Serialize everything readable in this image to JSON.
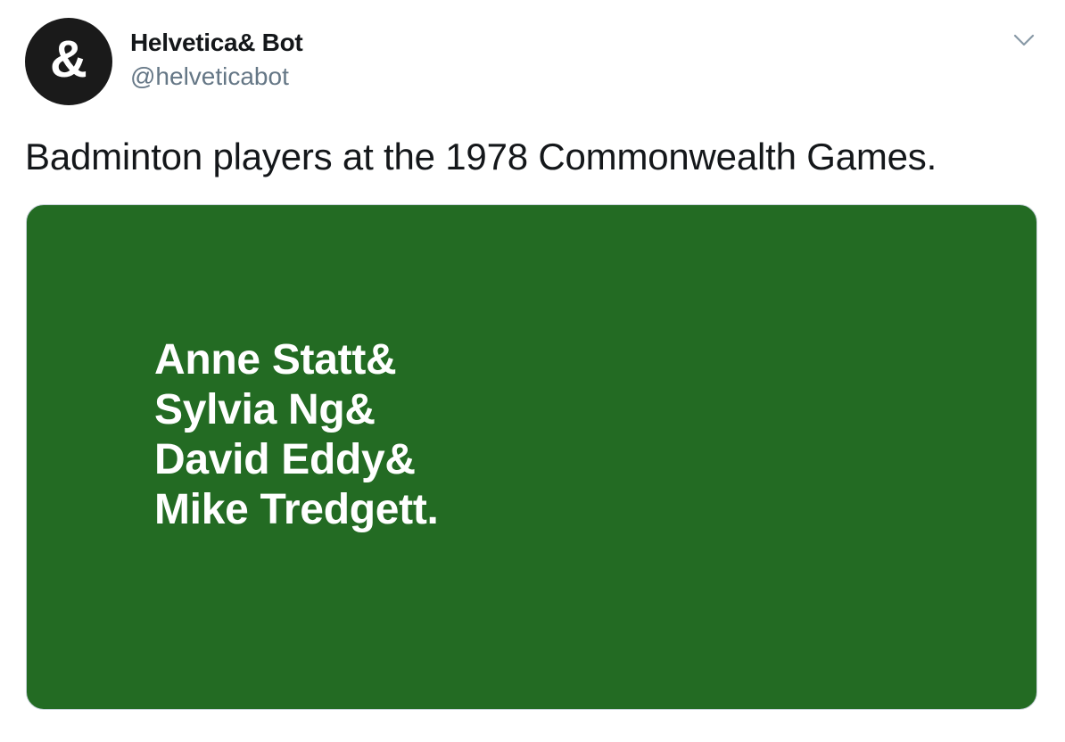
{
  "author": {
    "avatar_glyph": "&",
    "display_name": "Helvetica& Bot",
    "handle": "@helveticabot"
  },
  "menu": {
    "icon": "chevron-down-icon"
  },
  "tweet": {
    "text": "Badminton players at the 1978 Commonwealth Games."
  },
  "media": {
    "background_color": "#236b23",
    "lines": [
      "Anne Statt&",
      "Sylvia Ng&",
      "David Eddy&",
      "Mike Tredgett."
    ]
  }
}
